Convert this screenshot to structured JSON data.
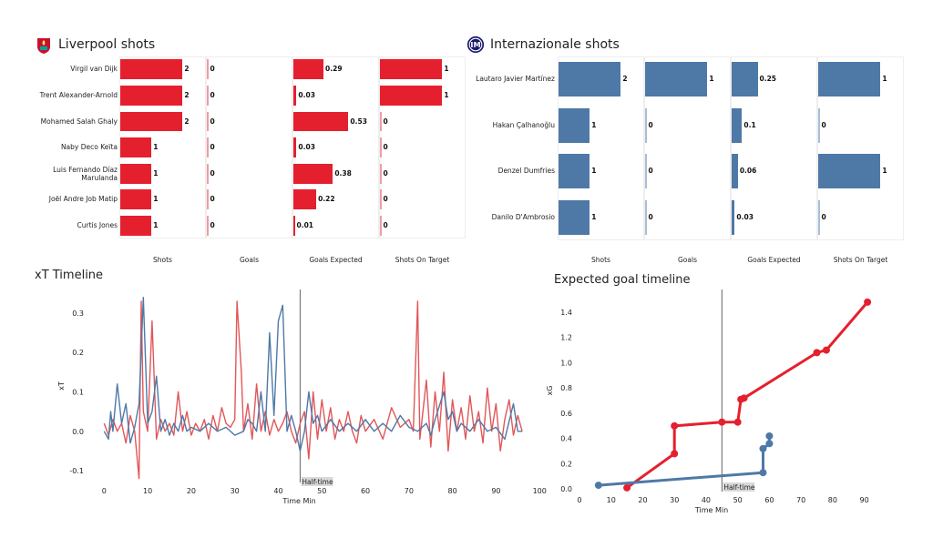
{
  "liverpool": {
    "title": "Liverpool shots",
    "color": "#e5202e",
    "columns": [
      "Shots",
      "Goals",
      "Goals Expected",
      "Shots On Target"
    ],
    "players": [
      {
        "name": "Virgil van Dijk",
        "values": [
          "2",
          "0",
          "0.29",
          "1"
        ]
      },
      {
        "name": "Trent Alexander-Arnold",
        "values": [
          "2",
          "0",
          "0.03",
          "1"
        ]
      },
      {
        "name": "Mohamed  Salah Ghaly",
        "values": [
          "2",
          "0",
          "0.53",
          "0"
        ]
      },
      {
        "name": "Naby Deco Keïta",
        "values": [
          "1",
          "0",
          "0.03",
          "0"
        ]
      },
      {
        "name": "Luis Fernando Díaz Marulanda",
        "values": [
          "1",
          "0",
          "0.38",
          "0"
        ]
      },
      {
        "name": "Joël Andre Job Matip",
        "values": [
          "1",
          "0",
          "0.22",
          "0"
        ]
      },
      {
        "name": "Curtis Jones",
        "values": [
          "1",
          "0",
          "0.01",
          "0"
        ]
      }
    ]
  },
  "inter": {
    "title": "Internazionale shots",
    "color": "#4e79a7",
    "columns": [
      "Shots",
      "Goals",
      "Goals Expected",
      "Shots On Target"
    ],
    "players": [
      {
        "name": "Lautaro Javier Martínez",
        "values": [
          "2",
          "1",
          "0.25",
          "1"
        ]
      },
      {
        "name": "Hakan Çalhanoğlu",
        "values": [
          "1",
          "0",
          "0.1",
          "0"
        ]
      },
      {
        "name": "Denzel Dumfries",
        "values": [
          "1",
          "0",
          "0.06",
          "1"
        ]
      },
      {
        "name": "Danilo D'Ambrosio",
        "values": [
          "1",
          "0",
          "0.03",
          "0"
        ]
      }
    ]
  },
  "chart_data": [
    {
      "type": "line",
      "title": "xT Timeline",
      "xlabel": "Time Min",
      "ylabel": "xT",
      "xlim": [
        -3,
        101
      ],
      "ylim": [
        -0.13,
        0.36
      ],
      "xticks": [
        "0",
        "10",
        "20",
        "30",
        "40",
        "50",
        "60",
        "70",
        "80",
        "90",
        "100"
      ],
      "yticks": [
        "-0.1",
        "0.0",
        "0.1",
        "0.2",
        "0.3"
      ],
      "annotation": {
        "label": "Half-time",
        "x": 45
      },
      "series": [
        {
          "color": "#e15759",
          "points": [
            [
              0,
              0.02
            ],
            [
              1,
              -0.01
            ],
            [
              2,
              0.03
            ],
            [
              3,
              0.0
            ],
            [
              4,
              0.02
            ],
            [
              5,
              -0.03
            ],
            [
              6,
              0.04
            ],
            [
              7,
              0.0
            ],
            [
              8,
              -0.12
            ],
            [
              8.5,
              0.33
            ],
            [
              9,
              0.05
            ],
            [
              10,
              0.0
            ],
            [
              11,
              0.28
            ],
            [
              12,
              -0.02
            ],
            [
              13,
              0.03
            ],
            [
              14,
              0.0
            ],
            [
              15,
              0.02
            ],
            [
              16,
              -0.01
            ],
            [
              17,
              0.1
            ],
            [
              18,
              0.0
            ],
            [
              19,
              0.05
            ],
            [
              20,
              -0.01
            ],
            [
              21,
              0.02
            ],
            [
              22,
              0.0
            ],
            [
              23,
              0.03
            ],
            [
              24,
              -0.02
            ],
            [
              25,
              0.04
            ],
            [
              26,
              0.0
            ],
            [
              27,
              0.06
            ],
            [
              28,
              0.02
            ],
            [
              29,
              0.01
            ],
            [
              30,
              0.03
            ],
            [
              30.5,
              0.33
            ],
            [
              31.5,
              0.15
            ],
            [
              32,
              0.0
            ],
            [
              33,
              0.07
            ],
            [
              34,
              -0.02
            ],
            [
              35,
              0.12
            ],
            [
              36,
              0.0
            ],
            [
              37,
              0.05
            ],
            [
              38,
              -0.01
            ],
            [
              39,
              0.03
            ],
            [
              40,
              0.0
            ],
            [
              41,
              0.02
            ],
            [
              42,
              0.05
            ],
            [
              43,
              0.0
            ],
            [
              44,
              -0.03
            ],
            [
              45,
              0.02
            ],
            [
              46,
              0.05
            ],
            [
              47,
              -0.07
            ],
            [
              48,
              0.1
            ],
            [
              49,
              -0.02
            ],
            [
              50,
              0.08
            ],
            [
              51,
              0.0
            ],
            [
              52,
              0.06
            ],
            [
              53,
              -0.02
            ],
            [
              54,
              0.03
            ],
            [
              55,
              0.0
            ],
            [
              56,
              0.05
            ],
            [
              57,
              0.0
            ],
            [
              58,
              -0.03
            ],
            [
              59,
              0.04
            ],
            [
              60,
              0.0
            ],
            [
              62,
              0.03
            ],
            [
              64,
              -0.02
            ],
            [
              66,
              0.06
            ],
            [
              68,
              0.01
            ],
            [
              70,
              0.03
            ],
            [
              71,
              0.0
            ],
            [
              72,
              0.33
            ],
            [
              72.5,
              -0.02
            ],
            [
              74,
              0.13
            ],
            [
              75,
              -0.04
            ],
            [
              76,
              0.1
            ],
            [
              77,
              0.0
            ],
            [
              78,
              0.15
            ],
            [
              79,
              -0.05
            ],
            [
              80,
              0.08
            ],
            [
              81,
              0.0
            ],
            [
              82,
              0.06
            ],
            [
              83,
              -0.02
            ],
            [
              84,
              0.09
            ],
            [
              85,
              0.0
            ],
            [
              86,
              0.05
            ],
            [
              87,
              -0.03
            ],
            [
              88,
              0.11
            ],
            [
              89,
              0.0
            ],
            [
              90,
              0.07
            ],
            [
              91,
              -0.05
            ],
            [
              92,
              0.03
            ],
            [
              93,
              0.08
            ],
            [
              94,
              -0.01
            ],
            [
              95,
              0.04
            ],
            [
              96,
              0.0
            ]
          ]
        },
        {
          "color": "#4e79a7",
          "points": [
            [
              0,
              0.0
            ],
            [
              1,
              -0.02
            ],
            [
              1.5,
              0.05
            ],
            [
              2,
              0.0
            ],
            [
              3,
              0.12
            ],
            [
              4,
              0.02
            ],
            [
              5,
              0.07
            ],
            [
              6,
              -0.03
            ],
            [
              7,
              0.01
            ],
            [
              8,
              0.07
            ],
            [
              9,
              0.34
            ],
            [
              10,
              0.02
            ],
            [
              11,
              0.05
            ],
            [
              12,
              0.14
            ],
            [
              13,
              0.0
            ],
            [
              14,
              0.03
            ],
            [
              15,
              -0.01
            ],
            [
              16,
              0.02
            ],
            [
              17,
              0.0
            ],
            [
              18,
              0.04
            ],
            [
              19,
              0.0
            ],
            [
              20,
              0.01
            ],
            [
              22,
              0.0
            ],
            [
              24,
              0.02
            ],
            [
              26,
              0.0
            ],
            [
              28,
              0.01
            ],
            [
              30,
              -0.01
            ],
            [
              32,
              0.0
            ],
            [
              33,
              0.03
            ],
            [
              34,
              0.02
            ],
            [
              35,
              0.0
            ],
            [
              36,
              0.1
            ],
            [
              37,
              0.0
            ],
            [
              38,
              0.25
            ],
            [
              39,
              0.04
            ],
            [
              40,
              0.28
            ],
            [
              41,
              0.32
            ],
            [
              42,
              0.0
            ],
            [
              43,
              0.04
            ],
            [
              44,
              0.0
            ],
            [
              45,
              -0.05
            ],
            [
              46,
              0.0
            ],
            [
              47,
              0.1
            ],
            [
              48,
              0.02
            ],
            [
              49,
              0.04
            ],
            [
              50,
              0.0
            ],
            [
              52,
              0.03
            ],
            [
              54,
              0.0
            ],
            [
              56,
              0.02
            ],
            [
              58,
              0.0
            ],
            [
              60,
              0.03
            ],
            [
              62,
              0.0
            ],
            [
              64,
              0.02
            ],
            [
              66,
              0.0
            ],
            [
              68,
              0.04
            ],
            [
              70,
              0.01
            ],
            [
              72,
              0.0
            ],
            [
              74,
              0.02
            ],
            [
              75,
              -0.01
            ],
            [
              76,
              0.03
            ],
            [
              78,
              0.1
            ],
            [
              79,
              0.03
            ],
            [
              80,
              0.05
            ],
            [
              81,
              0.0
            ],
            [
              82,
              0.02
            ],
            [
              84,
              0.0
            ],
            [
              86,
              0.03
            ],
            [
              88,
              0.0
            ],
            [
              90,
              0.01
            ],
            [
              92,
              -0.02
            ],
            [
              94,
              0.07
            ],
            [
              95,
              0.0
            ],
            [
              96,
              0.0
            ]
          ]
        }
      ]
    },
    {
      "type": "line",
      "title": "Expected goal timeline",
      "xlabel": "Time Min",
      "ylabel": "xG",
      "xlim": [
        0,
        95
      ],
      "ylim": [
        -0.02,
        1.58
      ],
      "xticks": [
        "0",
        "10",
        "20",
        "30",
        "40",
        "50",
        "60",
        "70",
        "80",
        "90"
      ],
      "yticks": [
        "0.0",
        "0.2",
        "0.4",
        "0.6",
        "0.8",
        "1.0",
        "1.2",
        "1.4"
      ],
      "annotation": {
        "label": "Half-time",
        "x": 45
      },
      "series": [
        {
          "color": "#e5202e",
          "points": [
            [
              15,
              0.01
            ],
            [
              30,
              0.28
            ],
            [
              30,
              0.5
            ],
            [
              45,
              0.53
            ],
            [
              50,
              0.53
            ],
            [
              51,
              0.71
            ],
            [
              52,
              0.72
            ],
            [
              75,
              1.08
            ],
            [
              78,
              1.1
            ],
            [
              91,
              1.48
            ]
          ]
        },
        {
          "color": "#4e79a7",
          "points": [
            [
              6,
              0.03
            ],
            [
              58,
              0.13
            ],
            [
              58,
              0.32
            ],
            [
              60,
              0.36
            ],
            [
              60,
              0.42
            ]
          ]
        }
      ]
    }
  ]
}
